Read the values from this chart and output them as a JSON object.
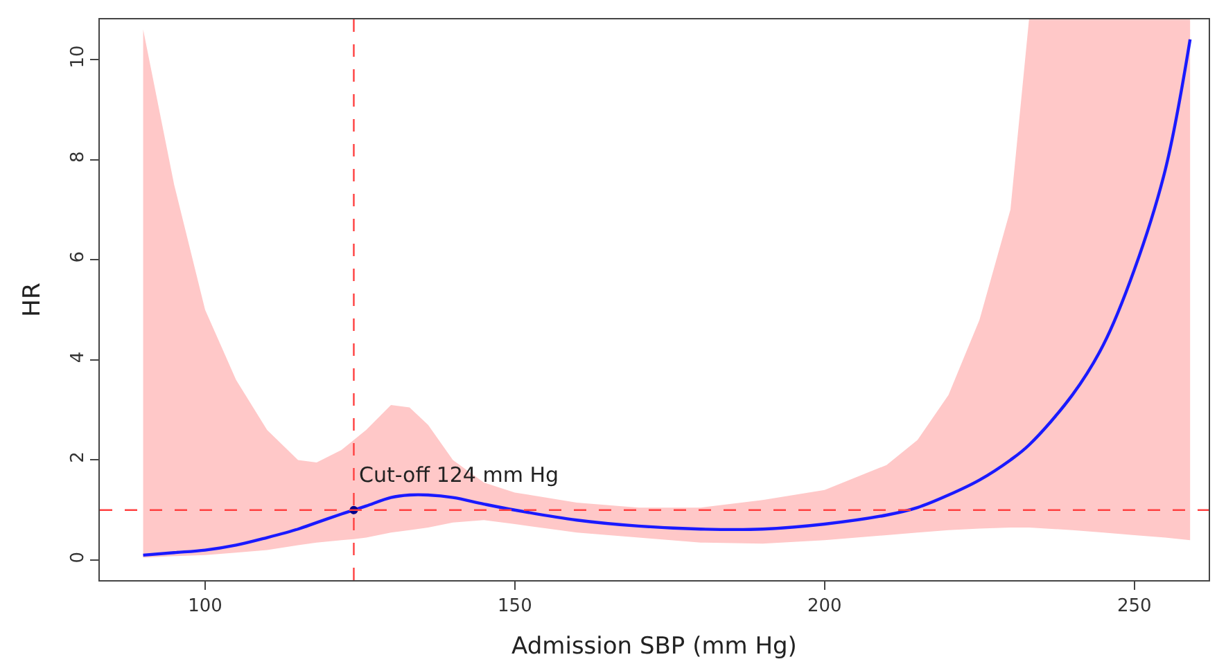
{
  "chart_data": {
    "type": "line",
    "xlabel": "Admission SBP (mm Hg)",
    "ylabel": "HR",
    "x": [
      90,
      95,
      100,
      105,
      110,
      115,
      118,
      122,
      124,
      126,
      130,
      133,
      136,
      140,
      145,
      150,
      160,
      170,
      180,
      190,
      200,
      210,
      215,
      220,
      225,
      230,
      233,
      240,
      245,
      250,
      255,
      259
    ],
    "series": [
      {
        "color": "#1a1aff",
        "line_style": "solid",
        "values": [
          0.1,
          0.15,
          0.2,
          0.3,
          0.45,
          0.62,
          0.75,
          0.92,
          1.0,
          1.08,
          1.25,
          1.3,
          1.3,
          1.25,
          1.12,
          1.0,
          0.8,
          0.68,
          0.62,
          0.62,
          0.72,
          0.9,
          1.05,
          1.3,
          1.6,
          2.0,
          2.3,
          3.3,
          4.3,
          5.8,
          7.8,
          10.4
        ],
        "lower": [
          0.05,
          0.08,
          0.1,
          0.15,
          0.2,
          0.3,
          0.35,
          0.4,
          0.42,
          0.45,
          0.55,
          0.6,
          0.65,
          0.75,
          0.8,
          0.72,
          0.55,
          0.45,
          0.35,
          0.33,
          0.4,
          0.5,
          0.55,
          0.6,
          0.63,
          0.65,
          0.65,
          0.6,
          0.55,
          0.5,
          0.45,
          0.4
        ],
        "upper": [
          10.6,
          7.5,
          5.0,
          3.6,
          2.6,
          2.0,
          1.95,
          2.2,
          2.4,
          2.6,
          3.1,
          3.05,
          2.7,
          2.0,
          1.55,
          1.35,
          1.15,
          1.05,
          1.05,
          1.2,
          1.4,
          1.9,
          2.4,
          3.3,
          4.8,
          7.0,
          10.8,
          10.8,
          10.8,
          10.8,
          10.8,
          10.8
        ]
      },
      {
        "type": "scatter",
        "color": "#00008b",
        "x": [
          124
        ],
        "values": [
          1.0
        ]
      }
    ],
    "ref_lines": [
      {
        "axis": "x",
        "value": 124,
        "color": "#ff4040",
        "line_style": "dashed"
      },
      {
        "axis": "y",
        "value": 1,
        "color": "#ff4040",
        "line_style": "dashed"
      }
    ],
    "annotations": [
      {
        "text": "Cut-off 124 mm Hg",
        "x": 124,
        "y": 1.0
      }
    ],
    "xlim": [
      83,
      262
    ],
    "ylim": [
      -0.4,
      10.8
    ],
    "xticks": [
      100,
      150,
      200,
      250
    ],
    "yticks": [
      0,
      2,
      4,
      6,
      8,
      10
    ]
  }
}
